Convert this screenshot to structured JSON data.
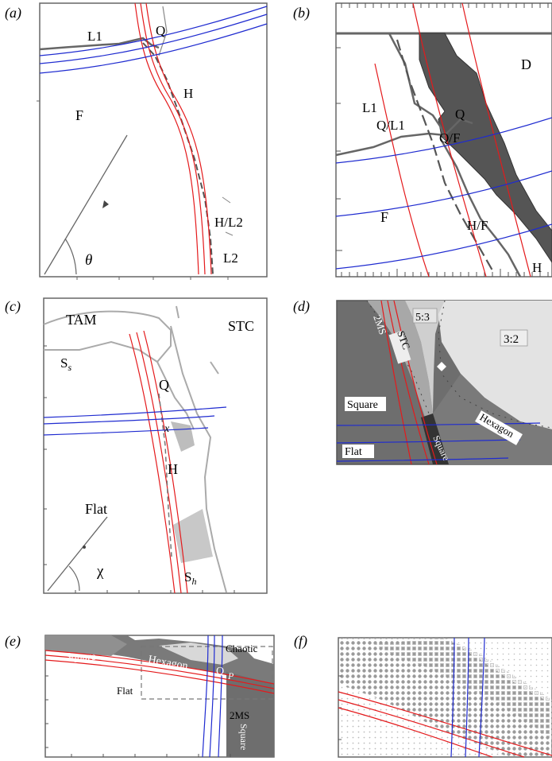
{
  "panels": {
    "a": {
      "label": "(a)",
      "regions": {
        "L1": "L1",
        "Q": "Q",
        "H": "H",
        "F": "F",
        "HL2": "H/L2",
        "L2": "L2"
      },
      "angle": "θ"
    },
    "b": {
      "label": "(b)",
      "regions": {
        "D": "D",
        "L1": "L1",
        "QL1": "Q/L1",
        "Q": "Q",
        "QF": "Q/F",
        "F": "F",
        "HF": "H/F",
        "H": "H"
      }
    },
    "c": {
      "label": "(c)",
      "regions": {
        "TAM": "TAM",
        "STC": "STC",
        "Ss": "S",
        "Ss_sub": "s",
        "Q": "Q",
        "x": "x",
        "H": "H",
        "Flat": "Flat",
        "Sh": "S",
        "Sh_sub": "h"
      },
      "angle": "χ"
    },
    "d": {
      "label": "(d)",
      "regions": {
        "MS": "2MS",
        "r53": "5:3",
        "STC": "STC",
        "r32": "3:2",
        "Square": "Square",
        "Hexagon": "Hexagon",
        "Flat": "Flat",
        "Square2": "Square"
      }
    },
    "e": {
      "label": "(e)",
      "regions": {
        "Square": "Square",
        "Chaotic": "Chaotic",
        "Hexagon": "Hexagon",
        "Q": "Q",
        "P": "P",
        "Flat": "Flat",
        "MS": "2MS",
        "Square2": "Square"
      }
    },
    "f": {
      "label": "(f)"
    }
  },
  "colors": {
    "red": "#e41a1c",
    "blue": "#1f2bd0",
    "gray": "#666666",
    "darkgray": "#555555"
  }
}
